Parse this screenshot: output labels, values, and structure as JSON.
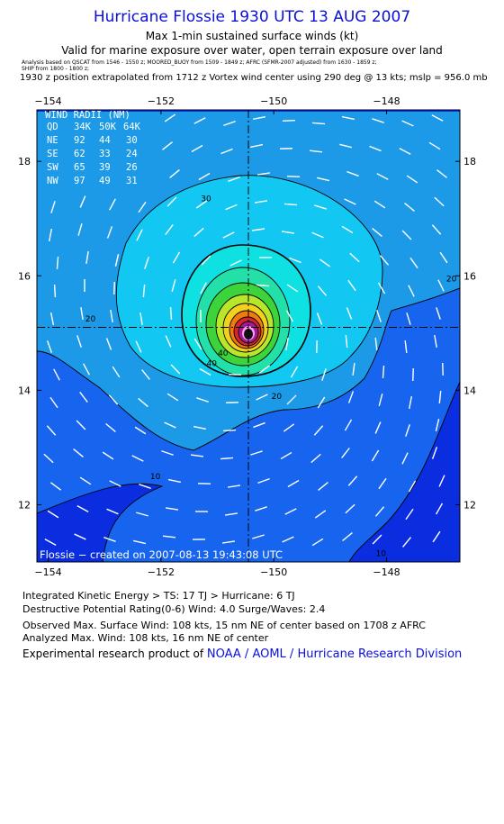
{
  "header": {
    "title": "Hurricane Flossie 1930 UTC 13 AUG 2007",
    "subtitle": "Max 1-min sustained surface winds (kt)",
    "valid": "Valid for marine exposure over water, open terrain exposure over land",
    "analysis_note_1": "Analysis based on QSCAT from 1546 - 1550 z;  MOORED_BUOY from 1509 - 1849 z;  AFRC (SFMR-2007 adjusted) from 1630 - 1859 z;",
    "analysis_note_2": "SHIP from 1800 - 1800 z;",
    "position_note": "1930 z position extrapolated from 1712 z Vortex wind center using 290 deg @ 13 kts; mslp = 956.0 mb"
  },
  "chart_data": {
    "type": "contour",
    "xlim": [
      -154.2,
      -146.7
    ],
    "ylim": [
      11.0,
      18.9
    ],
    "x_ticks": [
      -154,
      -152,
      -150,
      -148
    ],
    "x_tick_labels": [
      "−154",
      "−152",
      "−150",
      "−148"
    ],
    "y_ticks": [
      12,
      14,
      16,
      18
    ],
    "y_tick_labels": [
      "12",
      "14",
      "16",
      "18"
    ],
    "center": {
      "lon": -150.45,
      "lat": 15.1
    },
    "contour_labels": [
      {
        "text": "30",
        "lon": -151.2,
        "lat": 17.3
      },
      {
        "text": "20",
        "lon": -153.25,
        "lat": 15.2
      },
      {
        "text": "20",
        "lon": -146.85,
        "lat": 15.9
      },
      {
        "text": "20",
        "lon": -149.95,
        "lat": 13.85
      },
      {
        "text": "40",
        "lon": -150.9,
        "lat": 14.6
      },
      {
        "text": "40",
        "lon": -151.1,
        "lat": 14.42
      },
      {
        "text": "10",
        "lon": -152.1,
        "lat": 12.45
      },
      {
        "text": "10",
        "lon": -148.1,
        "lat": 11.1
      }
    ],
    "wind_radii": {
      "title": "WIND RADII (NM)",
      "headers": [
        "QD",
        "34K",
        "50K",
        "64K"
      ],
      "rows": [
        [
          "NE",
          "92",
          "44",
          "30"
        ],
        [
          "SE",
          "62",
          "33",
          "24"
        ],
        [
          "SW",
          "65",
          "39",
          "26"
        ],
        [
          "NW",
          "97",
          "49",
          "31"
        ]
      ]
    },
    "credit": "Flossie − created on 2007-08-13 19:43:08 UTC",
    "colors": {
      "lt10": "#0b2de0",
      "10_20": "#1764ee",
      "20_30": "#1c9ae8",
      "30_40": "#12c8f2",
      "40_50": "#0fe0e2",
      "50_60": "#23e0a8",
      "60_70": "#3cd43a",
      "70_80": "#b8e62a",
      "80_90": "#f2d11c",
      "90_100": "#ee7a10",
      "100_110": "#d7262a",
      "core": "#a41a9c",
      "eye": "#ff9ef3"
    }
  },
  "footer": {
    "ike": "Integrated Kinetic Energy > TS: 17 TJ   > Hurricane: 6 TJ",
    "dpr": "Destructive Potential Rating(0-6)   Wind: 4.0 Surge/Waves: 2.4",
    "observed": "Observed Max. Surface Wind: 108 kts, 15 nm NE of center based on 1708 z AFRC",
    "analyzed": "Analyzed Max. Wind: 108 kts, 16 nm NE of center",
    "product_prefix": "Experimental research product of ",
    "product_link": "NOAA / AOML / Hurricane Research Division"
  }
}
